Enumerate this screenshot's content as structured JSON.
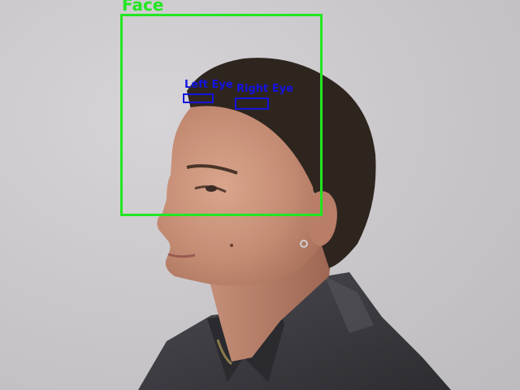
{
  "detections": {
    "face_label": "Face",
    "left_eye_label": "Left Eye",
    "right_eye_label": "Right Eye"
  },
  "colors": {
    "face_box": "#22e622",
    "eye_box": "#1414e0",
    "background": "#c9c7ca",
    "skin": "#c9917a",
    "hair": "#2e251f",
    "shirt": "#3b3b40"
  }
}
